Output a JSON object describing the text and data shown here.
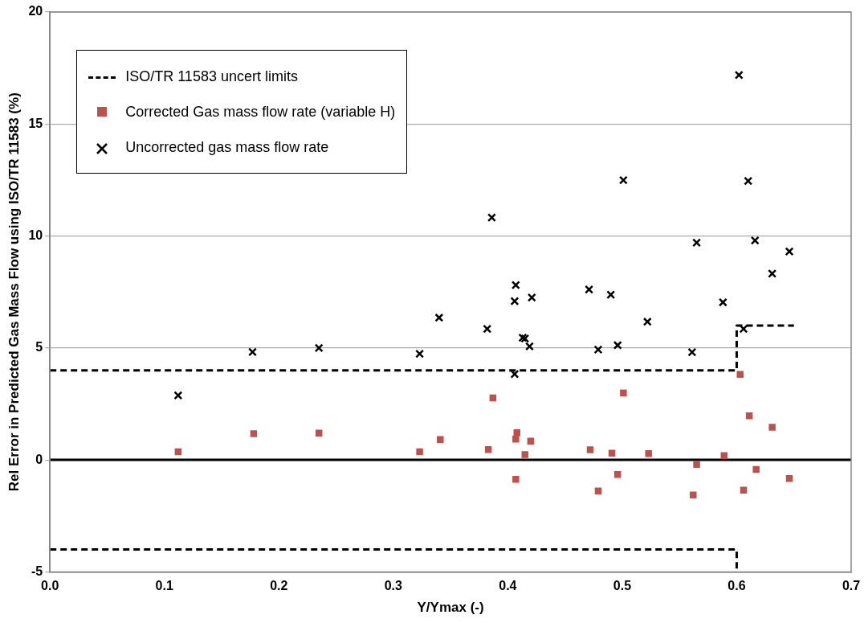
{
  "chart_data": {
    "type": "scatter",
    "xlabel": "Y/Ymax (-)",
    "ylabel": "Rel Error in Predicted Gas Mass Flow using ISO/TR 11583 (%)",
    "xlim": [
      0,
      0.7
    ],
    "xticks": [
      {
        "value": 0,
        "label": "0.0"
      },
      {
        "value": 0.1,
        "label": "0.1"
      },
      {
        "value": 0.2,
        "label": "0.2"
      },
      {
        "value": 0.3,
        "label": "0.3"
      },
      {
        "value": 0.4,
        "label": "0.4"
      },
      {
        "value": 0.5,
        "label": "0.5"
      },
      {
        "value": 0.6,
        "label": "0.6"
      },
      {
        "value": 0.7,
        "label": "0.7"
      }
    ],
    "ylim": [
      -5,
      20
    ],
    "yticks": [
      -5,
      0,
      5,
      10,
      15,
      20
    ],
    "grid": "y",
    "legend": "top left",
    "ref_lines": [
      {
        "axis": "y",
        "value": 0,
        "color": "#000000",
        "line_style": "solid"
      }
    ],
    "series": [
      {
        "name": "ISO/TR 11583 uncert limits",
        "type": "line",
        "color": "#000000",
        "line_style": "dashed",
        "marker": "none",
        "x": [
          0,
          0.6,
          0.6,
          0.65
        ],
        "values": [
          4,
          4,
          6,
          6
        ]
      },
      {
        "type": "line",
        "color": "#000000",
        "line_style": "dashed",
        "marker": "none",
        "x": [
          0,
          0.6,
          0.6
        ],
        "values": [
          -4,
          -4,
          -5
        ]
      },
      {
        "name": "Corrected Gas mass flow rate (variable H)",
        "color": "#c0504d",
        "marker": "square",
        "x": [
          0.112,
          0.178,
          0.235,
          0.323,
          0.341,
          0.387,
          0.383,
          0.408,
          0.407,
          0.42,
          0.415,
          0.407,
          0.472,
          0.491,
          0.501,
          0.479,
          0.496,
          0.523,
          0.562,
          0.565,
          0.589,
          0.603,
          0.606,
          0.611,
          0.617,
          0.631,
          0.646
        ],
        "values": [
          0.36,
          1.17,
          1.2,
          0.36,
          0.91,
          2.77,
          0.46,
          1.22,
          0.93,
          0.84,
          0.24,
          -0.87,
          0.45,
          0.3,
          2.99,
          -1.39,
          -0.65,
          0.28,
          -1.57,
          -0.2,
          0.19,
          3.82,
          -1.35,
          1.97,
          -0.43,
          1.46,
          -0.83
        ]
      },
      {
        "name": "Uncorrected gas mass flow rate",
        "color": "#000000",
        "marker": "cross",
        "x": [
          0.112,
          0.177,
          0.235,
          0.323,
          0.34,
          0.386,
          0.382,
          0.407,
          0.406,
          0.421,
          0.413,
          0.415,
          0.419,
          0.406,
          0.471,
          0.49,
          0.501,
          0.479,
          0.496,
          0.522,
          0.561,
          0.565,
          0.588,
          0.602,
          0.606,
          0.61,
          0.616,
          0.631,
          0.646
        ],
        "values": [
          2.88,
          4.82,
          5.0,
          4.74,
          6.35,
          10.82,
          5.85,
          7.81,
          7.09,
          7.25,
          5.46,
          5.42,
          5.07,
          3.83,
          7.61,
          7.38,
          12.49,
          4.93,
          5.12,
          6.17,
          4.81,
          9.7,
          7.04,
          17.19,
          5.85,
          12.46,
          9.8,
          8.32,
          9.31
        ]
      }
    ]
  }
}
